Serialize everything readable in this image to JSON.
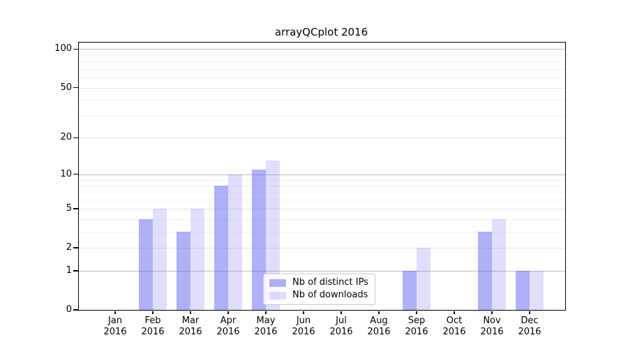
{
  "chart_data": {
    "type": "bar",
    "title": "arrayQCplot 2016",
    "categories": [
      "Jan",
      "Feb",
      "Mar",
      "Apr",
      "May",
      "Jun",
      "Jul",
      "Aug",
      "Sep",
      "Oct",
      "Nov",
      "Dec"
    ],
    "year_label": "2016",
    "series": [
      {
        "name": "Nb of distinct IPs",
        "color": "rgba(80,80,240,0.45)",
        "values": [
          0,
          4,
          3,
          8,
          11,
          0,
          0,
          0,
          1,
          0,
          3,
          1
        ]
      },
      {
        "name": "Nb of downloads",
        "color": "rgba(80,80,240,0.18)",
        "values": [
          0,
          5,
          5,
          10,
          13,
          0,
          0,
          0,
          2,
          0,
          4,
          1
        ]
      }
    ],
    "yscale": "log1p",
    "ylim": [
      0,
      112
    ],
    "yticks": [
      0,
      1,
      2,
      5,
      10,
      20,
      50,
      100
    ],
    "gridlines_major": [
      1,
      10,
      100
    ],
    "gridlines_mid": [
      2,
      5,
      20,
      50
    ],
    "gridlines_minor": [
      3,
      4,
      6,
      7,
      8,
      9,
      30,
      40,
      60,
      70,
      80,
      90
    ],
    "grid": "on",
    "legend_position": "lower center",
    "frame": "box",
    "accent_color_hex_rendered_dark": "#a9a9f6",
    "accent_color_hex_rendered_light": "#dcdcf9"
  }
}
